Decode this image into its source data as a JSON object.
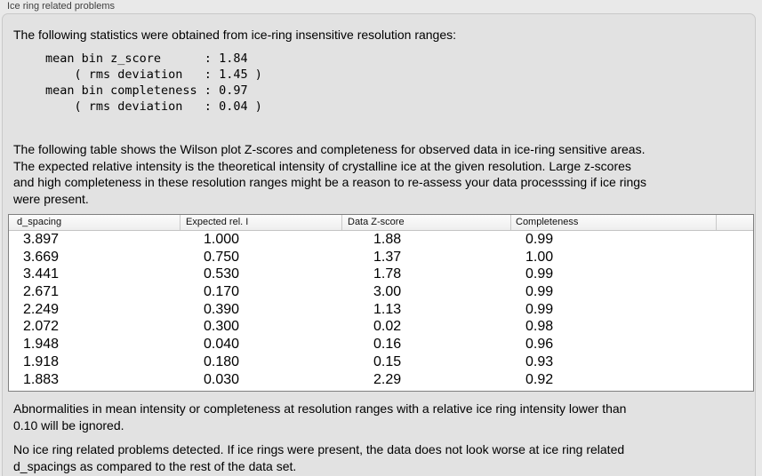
{
  "panel": {
    "title": "Ice ring related problems"
  },
  "intro": {
    "text": "The following statistics were obtained from ice-ring insensitive resolution ranges:",
    "stats_block": "mean bin z_score      : 1.84\n    ( rms deviation   : 1.45 )\nmean bin completeness : 0.97\n    ( rms deviation   : 0.04 )"
  },
  "description": "The following table shows the Wilson plot Z-scores and completeness for observed data in ice-ring sensitive areas.\nThe expected relative intensity is the theoretical intensity of crystalline ice at the given resolution. Large z-scores\nand high completeness in these resolution ranges might be a reason to re-assess your data processsing if ice rings\nwere present.",
  "table": {
    "columns": [
      "d_spacing",
      "Expected rel. I",
      "Data Z-score",
      "Completeness"
    ],
    "rows": [
      [
        "3.897",
        "1.000",
        "1.88",
        "0.99"
      ],
      [
        "3.669",
        "0.750",
        "1.37",
        "1.00"
      ],
      [
        "3.441",
        "0.530",
        "1.78",
        "0.99"
      ],
      [
        "2.671",
        "0.170",
        "3.00",
        "0.99"
      ],
      [
        "2.249",
        "0.390",
        "1.13",
        "0.99"
      ],
      [
        "2.072",
        "0.300",
        "0.02",
        "0.98"
      ],
      [
        "1.948",
        "0.040",
        "0.16",
        "0.96"
      ],
      [
        "1.918",
        "0.180",
        "0.15",
        "0.93"
      ],
      [
        "1.883",
        "0.030",
        "2.29",
        "0.92"
      ]
    ]
  },
  "footnotes": {
    "ignore_note": "Abnormalities in mean intensity or completeness at resolution ranges with a relative ice ring intensity lower than\n0.10 will be ignored.",
    "conclusion": "No ice ring related problems detected. If ice rings were present, the data does not look worse at ice ring related\nd_spacings as compared to the rest of the data set."
  },
  "colors": {
    "page_bg": "#e9e9e9",
    "panel_bg": "#e2e2e2",
    "table_border": "#7f7f7f",
    "table_row_bg": "#ffffff",
    "header_separator": "#c9c9c9"
  }
}
